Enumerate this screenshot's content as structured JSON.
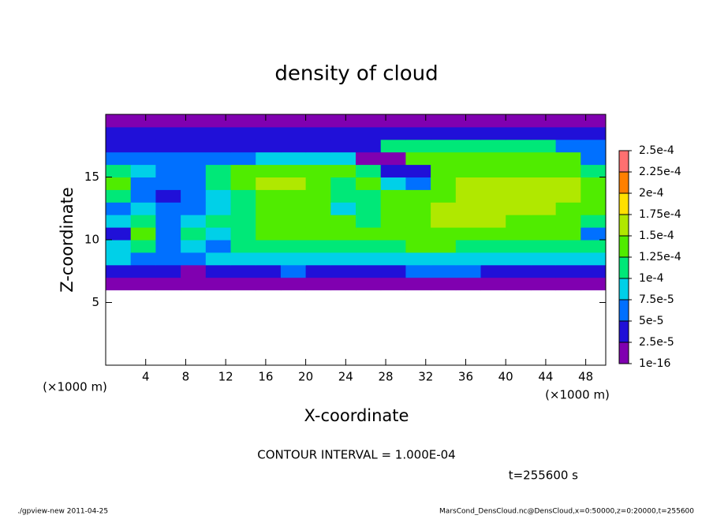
{
  "chart_data": {
    "type": "heatmap",
    "title": "density of cloud",
    "x_label": "X-coordinate",
    "y_label": "Z-coordinate",
    "x_unit": "(×1000 m)",
    "contour_note": "CONTOUR INTERVAL = 1.000E-04",
    "time_note": "t=255600 s",
    "footer_left": "./gpview-new  2011-04-25",
    "footer_right": "MarsCond_DensCloud.nc@DensCloud,x=0:50000,z=0:20000,t=255600",
    "xlim": [
      0,
      50
    ],
    "ylim": [
      0,
      20
    ],
    "xticks": [
      4,
      8,
      12,
      16,
      20,
      24,
      28,
      32,
      36,
      40,
      44,
      48
    ],
    "yticks": [
      5,
      10,
      15
    ],
    "x": [
      1.25,
      3.75,
      6.25,
      8.75,
      11.25,
      13.75,
      16.25,
      18.75,
      21.25,
      23.75,
      26.25,
      28.75,
      31.25,
      33.75,
      36.25,
      38.75,
      41.25,
      43.75,
      46.25,
      48.75
    ],
    "y": [
      6.5,
      7.5,
      8.5,
      9.5,
      10.5,
      11.5,
      12.5,
      13.5,
      14.5,
      15.5,
      16.5,
      17.5,
      18.5,
      19.5
    ],
    "values": [
      [
        1e-05,
        1e-05,
        1e-05,
        1e-05,
        1e-05,
        1e-05,
        1e-05,
        1e-05,
        1e-05,
        1e-05,
        1e-05,
        1e-05,
        1e-05,
        1e-05,
        1e-05,
        1e-05,
        1e-05,
        1e-05,
        1e-05,
        1e-05
      ],
      [
        4e-05,
        3e-05,
        3e-05,
        2e-05,
        3.5e-05,
        4e-05,
        4.5e-05,
        5e-05,
        4.5e-05,
        4.5e-05,
        4e-05,
        4.5e-05,
        5e-05,
        5e-05,
        5e-05,
        4.5e-05,
        4.5e-05,
        4e-05,
        4e-05,
        4e-05
      ],
      [
        8e-05,
        7e-05,
        6e-05,
        7e-05,
        8e-05,
        8.5e-05,
        9e-05,
        9e-05,
        8.5e-05,
        8.5e-05,
        8e-05,
        8e-05,
        8.5e-05,
        9e-05,
        9e-05,
        9e-05,
        9e-05,
        8.5e-05,
        9e-05,
        8.5e-05
      ],
      [
        9e-05,
        0.00011,
        5e-05,
        8e-05,
        7e-05,
        0.00011,
        0.000115,
        0.00012,
        0.00012,
        0.000115,
        0.000115,
        0.00012,
        0.000125,
        0.000125,
        0.00012,
        0.00012,
        0.00012,
        0.00012,
        0.00012,
        0.00011
      ],
      [
        4e-05,
        0.00013,
        7e-05,
        0.0001,
        9e-05,
        0.00012,
        0.00013,
        0.000135,
        0.00013,
        0.00013,
        0.000125,
        0.00013,
        0.00014,
        0.000145,
        0.000145,
        0.00014,
        0.00014,
        0.000135,
        0.00013,
        5e-05
      ],
      [
        8e-05,
        0.00011,
        6e-05,
        8e-05,
        0.0001,
        0.00012,
        0.00014,
        0.00014,
        0.000135,
        0.00013,
        0.00012,
        0.000135,
        0.000145,
        0.00015,
        0.000155,
        0.00015,
        0.000145,
        0.000145,
        0.00014,
        0.00012
      ],
      [
        6e-05,
        8e-05,
        5e-05,
        7e-05,
        9e-05,
        0.00012,
        0.00014,
        0.000135,
        0.00013,
        9e-05,
        0.0001,
        0.000135,
        0.000145,
        0.00015,
        0.00016,
        0.000155,
        0.00015,
        0.00015,
        0.000145,
        0.00013
      ],
      [
        0.0001,
        6e-05,
        4e-05,
        5e-05,
        8e-05,
        0.0001,
        0.00013,
        0.00014,
        0.00013,
        0.0001,
        0.00012,
        0.00014,
        0.00013,
        0.00014,
        0.000155,
        0.00016,
        0.000155,
        0.00015,
        0.00015,
        0.00013
      ],
      [
        0.00013,
        7e-05,
        5e-05,
        6e-05,
        0.0001,
        0.00013,
        0.00015,
        0.00015,
        0.00014,
        0.00012,
        0.00013,
        9e-05,
        6e-05,
        0.00014,
        0.000155,
        0.000155,
        0.000155,
        0.000155,
        0.000155,
        0.00013
      ],
      [
        0.00012,
        8e-05,
        6e-05,
        6e-05,
        0.0001,
        0.00014,
        0.00014,
        0.00014,
        0.00014,
        0.00014,
        0.00011,
        4e-05,
        4e-05,
        0.000145,
        0.000145,
        0.000145,
        0.000145,
        0.000145,
        0.000145,
        0.00012
      ],
      [
        5e-05,
        5e-05,
        5e-05,
        5e-05,
        6e-05,
        7e-05,
        8e-05,
        8e-05,
        8e-05,
        8e-05,
        2e-05,
        2e-05,
        0.00013,
        0.00013,
        0.00013,
        0.00013,
        0.00013,
        0.00013,
        0.00013,
        6e-05
      ],
      [
        4e-05,
        4e-05,
        4e-05,
        4e-05,
        4e-05,
        4e-05,
        4e-05,
        4e-05,
        4e-05,
        4e-05,
        4e-05,
        0.00011,
        0.00011,
        0.00011,
        0.00011,
        0.00011,
        0.00011,
        0.00011,
        5e-05,
        5e-05
      ],
      [
        3e-05,
        3e-05,
        3e-05,
        3e-05,
        3e-05,
        3e-05,
        3e-05,
        3e-05,
        3e-05,
        3e-05,
        3e-05,
        3e-05,
        3e-05,
        3e-05,
        3e-05,
        3e-05,
        3e-05,
        3e-05,
        3e-05,
        3e-05
      ],
      [
        1e-05,
        1e-05,
        1e-05,
        1e-05,
        1e-05,
        1e-05,
        1e-05,
        1e-05,
        1e-05,
        1e-05,
        1e-05,
        1e-05,
        1e-05,
        1e-05,
        1e-05,
        1e-05,
        1e-05,
        1e-05,
        1e-05,
        1e-05
      ]
    ],
    "levels": [
      {
        "value": 1e-16,
        "label": "1e-16"
      },
      {
        "value": 2.5e-05,
        "label": "2.5e-5"
      },
      {
        "value": 5e-05,
        "label": "5e-5"
      },
      {
        "value": 7.5e-05,
        "label": "7.5e-5"
      },
      {
        "value": 0.0001,
        "label": "1e-4"
      },
      {
        "value": 0.000125,
        "label": "1.25e-4"
      },
      {
        "value": 0.00015,
        "label": "1.5e-4"
      },
      {
        "value": 0.000175,
        "label": "1.75e-4"
      },
      {
        "value": 0.0002,
        "label": "2e-4"
      },
      {
        "value": 0.000225,
        "label": "2.25e-4"
      },
      {
        "value": 0.00025,
        "label": "2.5e-4"
      }
    ],
    "colors": [
      "#8000b0",
      "#2010d8",
      "#0070ff",
      "#00d0e8",
      "#00e878",
      "#50ec00",
      "#b0e800",
      "#ffe000",
      "#ff8000",
      "#ff7070"
    ]
  }
}
